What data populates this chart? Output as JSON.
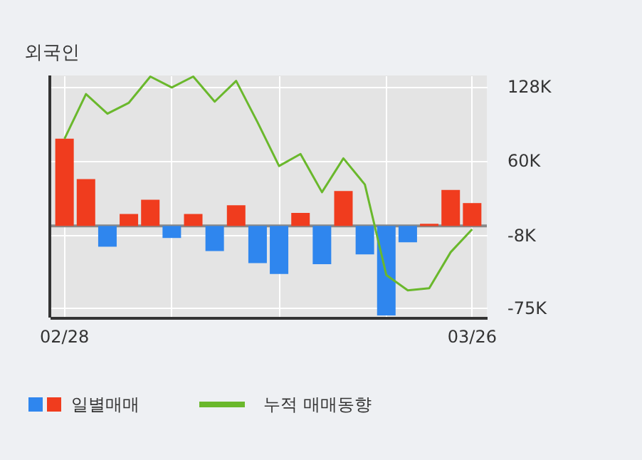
{
  "chart_data": {
    "type": "bar",
    "title": "외국인",
    "categories": [
      "02/28",
      null,
      null,
      null,
      null,
      null,
      null,
      null,
      null,
      null,
      null,
      null,
      null,
      null,
      null,
      null,
      null,
      null,
      null,
      "03/26"
    ],
    "series": [
      {
        "name": "일별매매",
        "colors": [
          "#f03c1e",
          "#f03c1e",
          "#2f86ee",
          "#f03c1e",
          "#f03c1e",
          "#2f86ee",
          "#f03c1e",
          "#2f86ee",
          "#f03c1e",
          "#2f86ee",
          "#2f86ee",
          "#f03c1e",
          "#2f86ee",
          "#f03c1e",
          "#2f86ee",
          "#2f86ee",
          "#2f86ee",
          "#f03c1e",
          "#f03c1e",
          "#f03c1e"
        ],
        "values": [
          80000,
          43000,
          -19000,
          11000,
          24000,
          -11000,
          11000,
          -23000,
          19000,
          -34000,
          -44000,
          12000,
          -35000,
          32000,
          -26000,
          -82000,
          -15000,
          2000,
          33000,
          21000
        ]
      },
      {
        "name": "누적 매매동향",
        "type": "line",
        "color": "#6ab82c",
        "values": [
          80000,
          121000,
          103000,
          113000,
          137000,
          127000,
          137000,
          114000,
          133000,
          95000,
          55000,
          66000,
          31000,
          62000,
          38000,
          -45000,
          -59000,
          -57000,
          -24000,
          -3000
        ]
      }
    ],
    "ylim": [
      -84000,
      138000
    ],
    "yticks": [
      {
        "value": 128000,
        "label": "128K"
      },
      {
        "value": 60000,
        "label": "60K"
      },
      {
        "value": -8000,
        "label": "-8K"
      },
      {
        "value": -75000,
        "label": "-75K"
      }
    ],
    "ref_lines": [
      {
        "axis": "y",
        "value": 0,
        "color": "#888888"
      }
    ],
    "grid": true,
    "legend": "bottom"
  }
}
